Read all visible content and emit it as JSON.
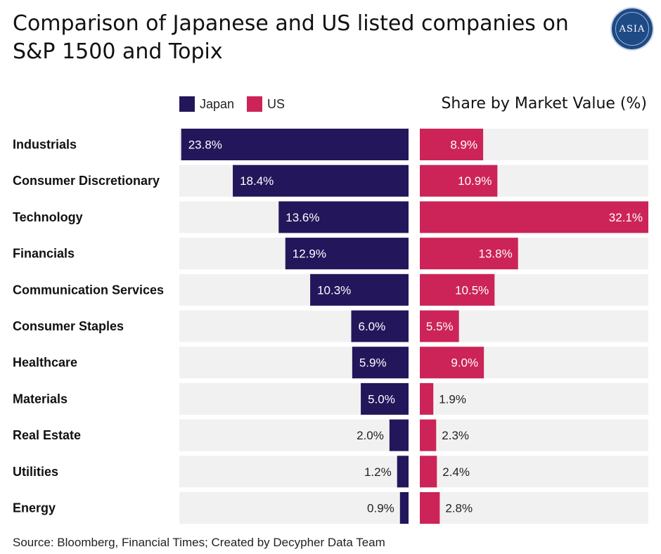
{
  "title": "Comparison of Japanese and US listed companies on S&P 1500 and Topix",
  "logo_text": "ASIA",
  "measure_label": "Share by Market Value (%)",
  "source": "Source: Bloomberg, Financial Times; Created by Decypher Data Team",
  "chart_data": {
    "type": "bar",
    "orientation": "horizontal",
    "layout": "back-to-back",
    "title": "Comparison of Japanese and US listed companies on S&P 1500 and Topix",
    "xlabel": "Share by Market Value (%)",
    "ylabel": "",
    "legend_position": "top",
    "categories": [
      "Industrials",
      "Consumer Discretionary",
      "Technology",
      "Financials",
      "Communication Services",
      "Consumer Staples",
      "Healthcare",
      "Materials",
      "Real Estate",
      "Utilities",
      "Energy"
    ],
    "series": [
      {
        "name": "Japan",
        "color": "#24165b",
        "values": [
          23.8,
          18.4,
          13.6,
          12.9,
          10.3,
          6.0,
          5.9,
          5.0,
          2.0,
          1.2,
          0.9
        ],
        "labels": [
          "23.8%",
          "18.4%",
          "13.6%",
          "12.9%",
          "10.3%",
          "6.0%",
          "5.9%",
          "5.0%",
          "2.0%",
          "1.2%",
          "0.9%"
        ]
      },
      {
        "name": "US",
        "color": "#cc2458",
        "values": [
          8.9,
          10.9,
          32.1,
          13.8,
          10.5,
          5.5,
          9.0,
          1.9,
          2.3,
          2.4,
          2.8
        ],
        "labels": [
          "8.9%",
          "10.9%",
          "32.1%",
          "13.8%",
          "10.5%",
          "5.5%",
          "9.0%",
          "1.9%",
          "2.3%",
          "2.4%",
          "2.8%"
        ]
      }
    ],
    "xlim_japan": [
      0,
      24
    ],
    "xlim_us": [
      0,
      32.1
    ],
    "track_color": "#f1f1f1"
  }
}
